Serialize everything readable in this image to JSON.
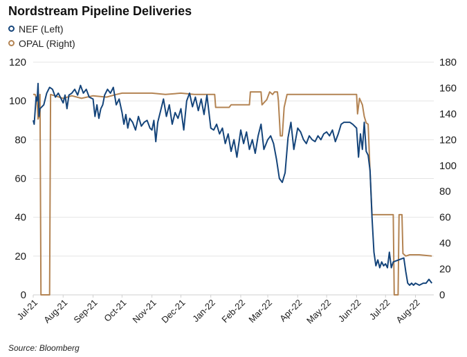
{
  "chart_data": {
    "type": "line",
    "title": "Nordstream Pipeline Deliveries",
    "source": "Source: Bloomberg",
    "x_range": [
      "2021-07-01",
      "2022-08-20"
    ],
    "x_ticks": [
      "Jul-21",
      "Aug-21",
      "Sep-21",
      "Oct-21",
      "Nov-21",
      "Dec-21",
      "Jan-22",
      "Feb-22",
      "Mar-22",
      "Apr-22",
      "May-22",
      "Jun-22",
      "Jul-22",
      "Aug-22"
    ],
    "y_left": {
      "min": 0,
      "max": 120,
      "ticks": [
        0,
        20,
        40,
        60,
        80,
        100,
        120
      ]
    },
    "y_right": {
      "min": 0,
      "max": 180,
      "ticks": [
        0,
        20,
        40,
        60,
        80,
        100,
        120,
        140,
        160,
        180
      ]
    },
    "grid": "horizontal",
    "legend_position": "top-left",
    "series": [
      {
        "name": "NEF (Left)",
        "axis": "left",
        "color": "#14447a",
        "points": [
          [
            "2021-07-01",
            90
          ],
          [
            "2021-07-02",
            88
          ],
          [
            "2021-07-03",
            95
          ],
          [
            "2021-07-04",
            102
          ],
          [
            "2021-07-05",
            100
          ],
          [
            "2021-07-06",
            109
          ],
          [
            "2021-07-07",
            92
          ],
          [
            "2021-07-08",
            96
          ],
          [
            "2021-07-12",
            98
          ],
          [
            "2021-07-15",
            104
          ],
          [
            "2021-07-18",
            107
          ],
          [
            "2021-07-21",
            106
          ],
          [
            "2021-07-24",
            102
          ],
          [
            "2021-07-27",
            104
          ],
          [
            "2021-08-01",
            99
          ],
          [
            "2021-08-03",
            103
          ],
          [
            "2021-08-05",
            96
          ],
          [
            "2021-08-07",
            103
          ],
          [
            "2021-08-10",
            104
          ],
          [
            "2021-08-13",
            106
          ],
          [
            "2021-08-16",
            103
          ],
          [
            "2021-08-19",
            108
          ],
          [
            "2021-08-22",
            104
          ],
          [
            "2021-08-25",
            106
          ],
          [
            "2021-08-28",
            102
          ],
          [
            "2021-09-01",
            101
          ],
          [
            "2021-09-03",
            92
          ],
          [
            "2021-09-05",
            98
          ],
          [
            "2021-09-07",
            91
          ],
          [
            "2021-09-09",
            96
          ],
          [
            "2021-09-11",
            98
          ],
          [
            "2021-09-13",
            103
          ],
          [
            "2021-09-16",
            106
          ],
          [
            "2021-09-19",
            104
          ],
          [
            "2021-09-22",
            107
          ],
          [
            "2021-09-25",
            98
          ],
          [
            "2021-09-28",
            101
          ],
          [
            "2021-10-01",
            94
          ],
          [
            "2021-10-03",
            88
          ],
          [
            "2021-10-05",
            93
          ],
          [
            "2021-10-07",
            86
          ],
          [
            "2021-10-09",
            91
          ],
          [
            "2021-10-12",
            89
          ],
          [
            "2021-10-15",
            85
          ],
          [
            "2021-10-18",
            92
          ],
          [
            "2021-10-21",
            87
          ],
          [
            "2021-10-24",
            89
          ],
          [
            "2021-10-27",
            90
          ],
          [
            "2021-10-30",
            86
          ],
          [
            "2021-11-01",
            85
          ],
          [
            "2021-11-03",
            90
          ],
          [
            "2021-11-05",
            79
          ],
          [
            "2021-11-07",
            89
          ],
          [
            "2021-11-10",
            95
          ],
          [
            "2021-11-13",
            101
          ],
          [
            "2021-11-16",
            92
          ],
          [
            "2021-11-19",
            98
          ],
          [
            "2021-11-22",
            88
          ],
          [
            "2021-11-25",
            94
          ],
          [
            "2021-11-28",
            91
          ],
          [
            "2021-12-01",
            96
          ],
          [
            "2021-12-04",
            85
          ],
          [
            "2021-12-07",
            100
          ],
          [
            "2021-12-10",
            104
          ],
          [
            "2021-12-13",
            97
          ],
          [
            "2021-12-16",
            102
          ],
          [
            "2021-12-19",
            95
          ],
          [
            "2021-12-22",
            101
          ],
          [
            "2021-12-25",
            93
          ],
          [
            "2021-12-28",
            103
          ],
          [
            "2022-01-01",
            86
          ],
          [
            "2022-01-04",
            85
          ],
          [
            "2022-01-07",
            88
          ],
          [
            "2022-01-10",
            83
          ],
          [
            "2022-01-13",
            86
          ],
          [
            "2022-01-16",
            78
          ],
          [
            "2022-01-19",
            83
          ],
          [
            "2022-01-22",
            74
          ],
          [
            "2022-01-25",
            80
          ],
          [
            "2022-01-28",
            71
          ],
          [
            "2022-02-01",
            85
          ],
          [
            "2022-02-04",
            78
          ],
          [
            "2022-02-07",
            84
          ],
          [
            "2022-02-10",
            75
          ],
          [
            "2022-02-13",
            80
          ],
          [
            "2022-02-16",
            73
          ],
          [
            "2022-02-19",
            82
          ],
          [
            "2022-02-22",
            88
          ],
          [
            "2022-02-25",
            75
          ],
          [
            "2022-03-01",
            80
          ],
          [
            "2022-03-04",
            82
          ],
          [
            "2022-03-07",
            78
          ],
          [
            "2022-03-10",
            70
          ],
          [
            "2022-03-13",
            60
          ],
          [
            "2022-03-16",
            58
          ],
          [
            "2022-03-19",
            63
          ],
          [
            "2022-03-22",
            81
          ],
          [
            "2022-03-25",
            89
          ],
          [
            "2022-03-28",
            75
          ],
          [
            "2022-04-01",
            86
          ],
          [
            "2022-04-04",
            84
          ],
          [
            "2022-04-07",
            80
          ],
          [
            "2022-04-10",
            78
          ],
          [
            "2022-04-13",
            82
          ],
          [
            "2022-04-16",
            80
          ],
          [
            "2022-04-19",
            79
          ],
          [
            "2022-04-22",
            82
          ],
          [
            "2022-04-25",
            80
          ],
          [
            "2022-04-28",
            83
          ],
          [
            "2022-05-01",
            84
          ],
          [
            "2022-05-04",
            82
          ],
          [
            "2022-05-07",
            85
          ],
          [
            "2022-05-10",
            79
          ],
          [
            "2022-05-13",
            83
          ],
          [
            "2022-05-16",
            88
          ],
          [
            "2022-05-19",
            89
          ],
          [
            "2022-05-22",
            89
          ],
          [
            "2022-05-25",
            89
          ],
          [
            "2022-05-28",
            88
          ],
          [
            "2022-06-01",
            86
          ],
          [
            "2022-06-03",
            71
          ],
          [
            "2022-06-05",
            83
          ],
          [
            "2022-06-07",
            75
          ],
          [
            "2022-06-09",
            89
          ],
          [
            "2022-06-11",
            74
          ],
          [
            "2022-06-13",
            72
          ],
          [
            "2022-06-15",
            64
          ],
          [
            "2022-06-17",
            40
          ],
          [
            "2022-06-19",
            22
          ],
          [
            "2022-06-21",
            15
          ],
          [
            "2022-06-23",
            18
          ],
          [
            "2022-06-25",
            14
          ],
          [
            "2022-06-27",
            17
          ],
          [
            "2022-06-29",
            15
          ],
          [
            "2022-07-01",
            16
          ],
          [
            "2022-07-03",
            14
          ],
          [
            "2022-07-05",
            22
          ],
          [
            "2022-07-07",
            14
          ],
          [
            "2022-07-09",
            17
          ],
          [
            "2022-07-20",
            19
          ],
          [
            "2022-07-22",
            12
          ],
          [
            "2022-07-24",
            6
          ],
          [
            "2022-07-26",
            5
          ],
          [
            "2022-07-28",
            6
          ],
          [
            "2022-07-30",
            5
          ],
          [
            "2022-08-01",
            6
          ],
          [
            "2022-08-05",
            5
          ],
          [
            "2022-08-09",
            6
          ],
          [
            "2022-08-12",
            6
          ],
          [
            "2022-08-15",
            8
          ],
          [
            "2022-08-18",
            6
          ]
        ]
      },
      {
        "name": "OPAL (Right)",
        "axis": "right",
        "color": "#b38352",
        "points": [
          [
            "2021-07-01",
            155
          ],
          [
            "2021-07-03",
            155
          ],
          [
            "2021-07-05",
            150
          ],
          [
            "2021-07-06",
            136
          ],
          [
            "2021-07-07",
            138
          ],
          [
            "2021-07-08",
            155
          ],
          [
            "2021-07-09",
            0
          ],
          [
            "2021-07-18",
            0
          ],
          [
            "2021-07-19",
            155
          ],
          [
            "2021-08-01",
            152
          ],
          [
            "2021-08-10",
            154
          ],
          [
            "2021-08-20",
            152
          ],
          [
            "2021-09-01",
            154
          ],
          [
            "2021-09-15",
            153
          ],
          [
            "2021-09-25",
            155
          ],
          [
            "2021-10-01",
            156
          ],
          [
            "2021-10-15",
            156
          ],
          [
            "2021-11-01",
            156
          ],
          [
            "2021-11-15",
            155
          ],
          [
            "2021-12-01",
            156
          ],
          [
            "2021-12-15",
            155
          ],
          [
            "2022-01-01",
            155
          ],
          [
            "2022-01-05",
            155
          ],
          [
            "2022-01-06",
            145
          ],
          [
            "2022-01-20",
            145
          ],
          [
            "2022-01-22",
            147
          ],
          [
            "2022-02-10",
            147
          ],
          [
            "2022-02-11",
            157
          ],
          [
            "2022-02-22",
            157
          ],
          [
            "2022-02-23",
            147
          ],
          [
            "2022-02-28",
            151
          ],
          [
            "2022-03-03",
            157
          ],
          [
            "2022-03-06",
            155
          ],
          [
            "2022-03-08",
            157
          ],
          [
            "2022-03-11",
            157
          ],
          [
            "2022-03-12",
            150
          ],
          [
            "2022-03-14",
            123
          ],
          [
            "2022-03-16",
            123
          ],
          [
            "2022-03-18",
            145
          ],
          [
            "2022-03-21",
            155
          ],
          [
            "2022-04-01",
            155
          ],
          [
            "2022-04-15",
            155
          ],
          [
            "2022-05-01",
            155
          ],
          [
            "2022-05-15",
            155
          ],
          [
            "2022-05-28",
            155
          ],
          [
            "2022-06-01",
            155
          ],
          [
            "2022-06-02",
            140
          ],
          [
            "2022-06-04",
            152
          ],
          [
            "2022-06-07",
            147
          ],
          [
            "2022-06-09",
            138
          ],
          [
            "2022-06-11",
            133
          ],
          [
            "2022-06-13",
            132
          ],
          [
            "2022-06-15",
            95
          ],
          [
            "2022-06-17",
            62
          ],
          [
            "2022-06-20",
            62
          ],
          [
            "2022-06-30",
            62
          ],
          [
            "2022-07-07",
            62
          ],
          [
            "2022-07-09",
            62
          ],
          [
            "2022-07-10",
            0
          ],
          [
            "2022-07-14",
            0
          ],
          [
            "2022-07-15",
            62
          ],
          [
            "2022-07-18",
            62
          ],
          [
            "2022-07-19",
            32
          ],
          [
            "2022-07-22",
            30
          ],
          [
            "2022-07-26",
            31
          ],
          [
            "2022-08-05",
            31
          ],
          [
            "2022-08-18",
            30
          ]
        ]
      }
    ]
  }
}
